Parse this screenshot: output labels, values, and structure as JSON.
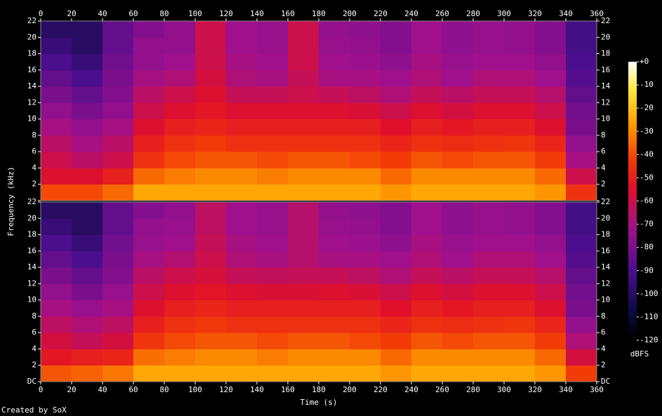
{
  "chart_data": {
    "type": "spectrogram",
    "xlabel": "Time (s)",
    "ylabel": "Frequency (kHz)",
    "colorbar_label": "dBFS",
    "footer": "Created by SoX",
    "xlim": [
      0,
      360
    ],
    "xticks": [
      0,
      20,
      40,
      60,
      80,
      100,
      120,
      140,
      160,
      180,
      200,
      220,
      240,
      260,
      280,
      300,
      320,
      340,
      360
    ],
    "ylim": [
      0,
      22
    ],
    "yticks": [
      {
        "value": 0,
        "label": "DC"
      },
      2,
      4,
      6,
      8,
      10,
      12,
      14,
      16,
      18,
      20,
      22
    ],
    "clim": [
      -120,
      0
    ],
    "cticks": [
      {
        "value": 0,
        "label": "+0"
      },
      -10,
      -20,
      -30,
      -40,
      -50,
      -60,
      -70,
      -80,
      -90,
      -100,
      -110,
      -120
    ],
    "time_bins": [
      0,
      20,
      40,
      60,
      80,
      100,
      120,
      140,
      160,
      180,
      200,
      220,
      240,
      260,
      280,
      300,
      320,
      340,
      360
    ],
    "freq_bins": [
      0,
      2,
      4,
      6,
      8,
      10,
      12,
      14,
      16,
      18,
      20,
      22
    ],
    "channels": [
      {
        "values": [
          [
            -40,
            -55,
            -60,
            -65,
            -70,
            -75,
            -80,
            -85,
            -90,
            -95,
            -100
          ],
          [
            -40,
            -55,
            -65,
            -70,
            -75,
            -80,
            -85,
            -90,
            -95,
            -100,
            -100
          ],
          [
            -35,
            -50,
            -60,
            -65,
            -70,
            -75,
            -78,
            -80,
            -82,
            -85,
            -85
          ],
          [
            -25,
            -35,
            -45,
            -50,
            -55,
            -60,
            -65,
            -70,
            -75,
            -75,
            -78
          ],
          [
            -25,
            -32,
            -40,
            -45,
            -50,
            -55,
            -60,
            -68,
            -72,
            -75,
            -75
          ],
          [
            -25,
            -30,
            -38,
            -42,
            -48,
            -52,
            -55,
            -58,
            -60,
            -60,
            -60
          ],
          [
            -25,
            -30,
            -38,
            -45,
            -50,
            -55,
            -62,
            -68,
            -70,
            -72,
            -72
          ],
          [
            -25,
            -32,
            -40,
            -45,
            -50,
            -55,
            -62,
            -70,
            -72,
            -74,
            -74
          ],
          [
            -25,
            -30,
            -38,
            -45,
            -50,
            -55,
            -60,
            -62,
            -60,
            -60,
            -60
          ],
          [
            -25,
            -30,
            -38,
            -45,
            -50,
            -55,
            -62,
            -70,
            -72,
            -74,
            -75
          ],
          [
            -25,
            -30,
            -40,
            -45,
            -50,
            -56,
            -64,
            -70,
            -73,
            -75,
            -76
          ],
          [
            -28,
            -35,
            -42,
            -48,
            -54,
            -60,
            -68,
            -72,
            -76,
            -78,
            -78
          ],
          [
            -25,
            -30,
            -38,
            -45,
            -50,
            -55,
            -62,
            -68,
            -70,
            -72,
            -72
          ],
          [
            -25,
            -30,
            -40,
            -46,
            -52,
            -58,
            -65,
            -72,
            -74,
            -76,
            -76
          ],
          [
            -25,
            -30,
            -38,
            -45,
            -50,
            -55,
            -62,
            -68,
            -72,
            -74,
            -74
          ],
          [
            -25,
            -30,
            -38,
            -44,
            -50,
            -55,
            -62,
            -68,
            -72,
            -75,
            -75
          ],
          [
            -28,
            -35,
            -42,
            -48,
            -55,
            -60,
            -66,
            -72,
            -75,
            -78,
            -78
          ],
          [
            -45,
            -60,
            -70,
            -75,
            -80,
            -82,
            -85,
            -88,
            -90,
            -92,
            -92
          ]
        ]
      },
      {
        "values": [
          [
            -38,
            -52,
            -58,
            -64,
            -70,
            -75,
            -80,
            -85,
            -90,
            -95,
            -100
          ],
          [
            -36,
            -50,
            -62,
            -68,
            -74,
            -80,
            -85,
            -90,
            -95,
            -100,
            -100
          ],
          [
            -33,
            -48,
            -58,
            -64,
            -70,
            -74,
            -78,
            -80,
            -82,
            -85,
            -85
          ],
          [
            -25,
            -34,
            -44,
            -50,
            -55,
            -60,
            -65,
            -70,
            -74,
            -75,
            -78
          ],
          [
            -25,
            -32,
            -40,
            -45,
            -50,
            -55,
            -60,
            -67,
            -72,
            -74,
            -75
          ],
          [
            -25,
            -30,
            -38,
            -43,
            -48,
            -53,
            -57,
            -60,
            -62,
            -64,
            -64
          ],
          [
            -25,
            -30,
            -38,
            -45,
            -50,
            -55,
            -62,
            -68,
            -70,
            -72,
            -72
          ],
          [
            -25,
            -32,
            -40,
            -45,
            -50,
            -56,
            -63,
            -70,
            -72,
            -74,
            -74
          ],
          [
            -25,
            -30,
            -38,
            -45,
            -50,
            -56,
            -62,
            -66,
            -66,
            -66,
            -66
          ],
          [
            -25,
            -30,
            -38,
            -45,
            -50,
            -55,
            -62,
            -70,
            -72,
            -74,
            -75
          ],
          [
            -25,
            -30,
            -40,
            -45,
            -50,
            -56,
            -64,
            -70,
            -73,
            -75,
            -76
          ],
          [
            -28,
            -35,
            -42,
            -48,
            -54,
            -60,
            -68,
            -72,
            -76,
            -78,
            -78
          ],
          [
            -25,
            -30,
            -38,
            -45,
            -50,
            -55,
            -62,
            -68,
            -70,
            -72,
            -72
          ],
          [
            -25,
            -30,
            -40,
            -46,
            -52,
            -58,
            -65,
            -72,
            -74,
            -76,
            -76
          ],
          [
            -25,
            -30,
            -38,
            -45,
            -50,
            -55,
            -62,
            -68,
            -72,
            -74,
            -74
          ],
          [
            -25,
            -30,
            -38,
            -44,
            -50,
            -55,
            -62,
            -68,
            -72,
            -75,
            -75
          ],
          [
            -28,
            -35,
            -42,
            -48,
            -55,
            -60,
            -66,
            -72,
            -75,
            -78,
            -78
          ],
          [
            -42,
            -58,
            -68,
            -75,
            -80,
            -82,
            -85,
            -88,
            -90,
            -92,
            -92
          ]
        ]
      }
    ]
  }
}
